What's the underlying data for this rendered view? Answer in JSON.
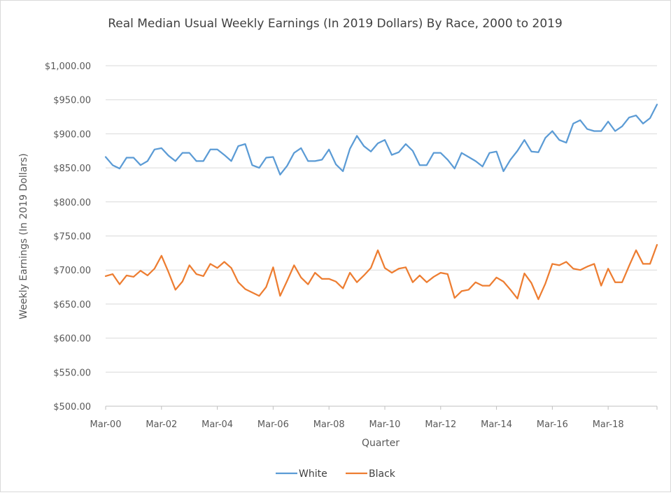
{
  "chart_data": {
    "type": "line",
    "title": "Real Median Usual Weekly Earnings (In 2019 Dollars) By Race, 2000 to 2019",
    "xlabel": "Quarter",
    "ylabel": "Weekly Earnings (In 2019 Dollars)",
    "ylim": [
      500,
      1000
    ],
    "y_ticks": [
      500,
      550,
      600,
      650,
      700,
      750,
      800,
      850,
      900,
      950,
      1000
    ],
    "y_tick_labels": [
      "$500.00",
      "$550.00",
      "$600.00",
      "$650.00",
      "$700.00",
      "$750.00",
      "$800.00",
      "$850.00",
      "$900.00",
      "$950.00",
      "$1,000.00"
    ],
    "x_tick_labels": [
      "Mar-00",
      "Mar-02",
      "Mar-04",
      "Mar-06",
      "Mar-08",
      "Mar-10",
      "Mar-12",
      "Mar-14",
      "Mar-16",
      "Mar-18"
    ],
    "grid": true,
    "legend_position": "bottom",
    "series": [
      {
        "name": "White",
        "color": "#5b9bd5",
        "values": [
          866,
          854,
          849,
          865,
          865,
          854,
          860,
          877,
          879,
          868,
          860,
          872,
          872,
          860,
          860,
          877,
          877,
          869,
          860,
          882,
          885,
          854,
          850,
          865,
          866,
          840,
          853,
          872,
          879,
          860,
          860,
          862,
          877,
          855,
          845,
          878,
          897,
          882,
          874,
          886,
          891,
          869,
          873,
          885,
          875,
          854,
          854,
          872,
          872,
          862,
          849,
          872,
          866,
          860,
          852,
          872,
          874,
          845,
          862,
          875,
          891,
          874,
          873,
          894,
          904,
          891,
          887,
          915,
          920,
          907,
          904,
          904,
          918,
          904,
          911,
          924,
          927,
          915,
          923,
          943
        ]
      },
      {
        "name": "Black",
        "color": "#ed7d31",
        "values": [
          691,
          694,
          679,
          692,
          690,
          699,
          692,
          702,
          721,
          697,
          671,
          683,
          707,
          694,
          691,
          709,
          703,
          712,
          703,
          682,
          672,
          667,
          662,
          675,
          704,
          662,
          684,
          707,
          689,
          679,
          696,
          687,
          687,
          683,
          673,
          696,
          682,
          692,
          703,
          729,
          703,
          696,
          702,
          704,
          682,
          692,
          682,
          690,
          696,
          694,
          659,
          669,
          671,
          682,
          677,
          677,
          689,
          683,
          671,
          658,
          695,
          681,
          657,
          680,
          709,
          707,
          712,
          702,
          700,
          705,
          709,
          677,
          702,
          682,
          682,
          706,
          729,
          709,
          709,
          737
        ]
      }
    ]
  }
}
